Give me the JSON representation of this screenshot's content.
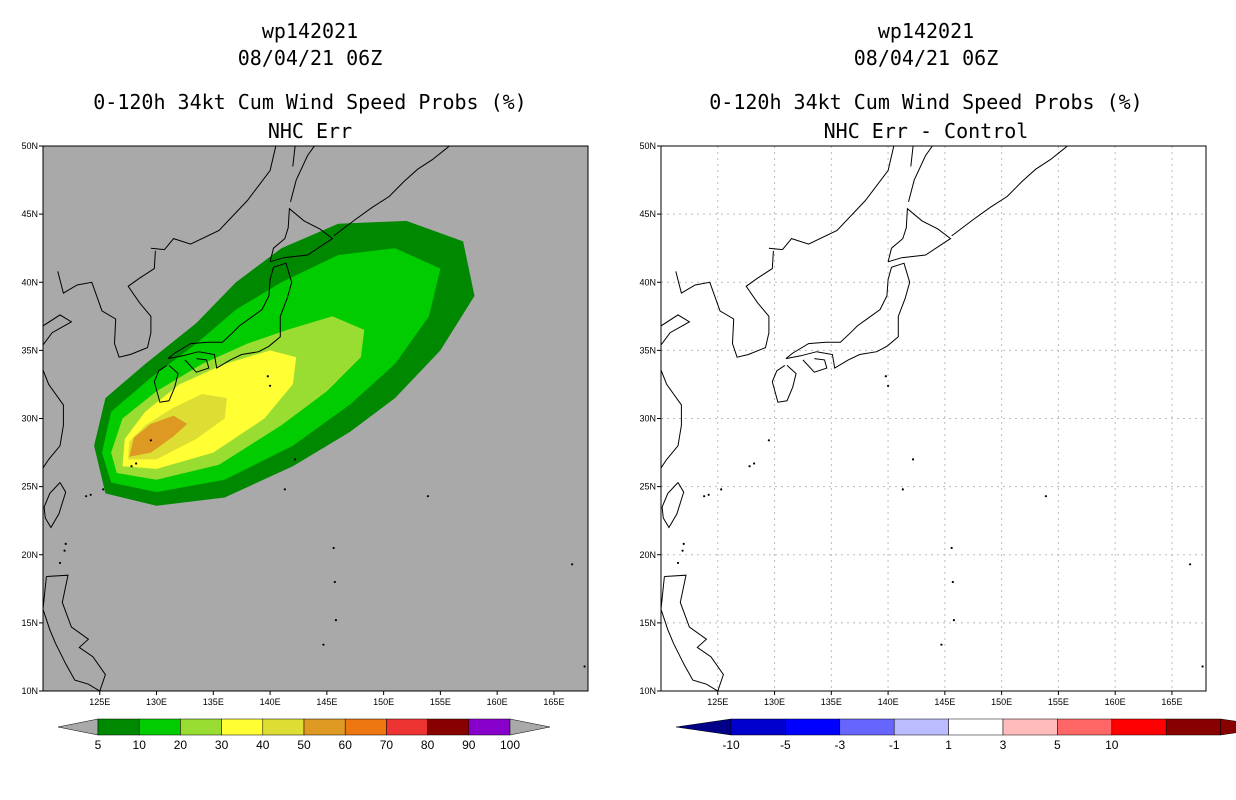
{
  "left_panel": {
    "title_line1": "wp142021",
    "title_line2": "08/04/21 06Z",
    "title_line3": "0-120h 34kt Cum Wind Speed Probs (%)",
    "title_line4": "NHC Err",
    "background_color": "#a9a9a9",
    "colorbar": {
      "labels": [
        "5",
        "10",
        "20",
        "30",
        "40",
        "50",
        "60",
        "70",
        "80",
        "90",
        "100"
      ],
      "colors": [
        "#008800",
        "#00cc00",
        "#99dd33",
        "#ffff33",
        "#dddd33",
        "#dd9922",
        "#ee7711",
        "#ee3333",
        "#880000",
        "#8800cc"
      ],
      "extend_color": "#a9a9a9"
    }
  },
  "right_panel": {
    "title_line1": "wp142021",
    "title_line2": "08/04/21 06Z",
    "title_line3": "0-120h 34kt Cum Wind Speed Probs (%)",
    "title_line4": "NHC Err - Control",
    "background_color": "#ffffff",
    "colorbar": {
      "labels": [
        "-10",
        "-5",
        "-3",
        "-1",
        "1",
        "3",
        "5",
        "10"
      ],
      "colors": [
        "#0000cc",
        "#0000ff",
        "#6666ff",
        "#bbbbff",
        "#ffffff",
        "#ffbbbb",
        "#ff6666",
        "#ff0000",
        "#880000"
      ],
      "low_color": "#000088",
      "high_color": "#880000"
    }
  },
  "axes": {
    "lon_ticks": [
      "125E",
      "130E",
      "135E",
      "140E",
      "145E",
      "150E",
      "155E",
      "160E",
      "165E"
    ],
    "lat_ticks": [
      "10N",
      "15N",
      "20N",
      "25N",
      "30N",
      "35N",
      "40N",
      "45N",
      "50N"
    ],
    "lon_range": [
      120,
      168
    ],
    "lat_range": [
      10,
      50
    ]
  },
  "probability_contours": [
    {
      "level": 5,
      "color": "#008800",
      "points": [
        [
          125.5,
          24.5
        ],
        [
          130,
          23.6
        ],
        [
          136,
          24.2
        ],
        [
          142,
          26.5
        ],
        [
          147,
          29
        ],
        [
          151,
          31.5
        ],
        [
          155,
          35
        ],
        [
          158,
          39
        ],
        [
          157,
          43
        ],
        [
          152,
          44.5
        ],
        [
          146,
          44.3
        ],
        [
          141,
          42.5
        ],
        [
          137,
          40
        ],
        [
          133.5,
          37
        ],
        [
          129,
          34
        ],
        [
          125.5,
          31.5
        ],
        [
          124.5,
          28
        ]
      ]
    },
    {
      "level": 10,
      "color": "#00cc00",
      "points": [
        [
          126,
          25.3
        ],
        [
          130,
          24.6
        ],
        [
          136,
          25.5
        ],
        [
          142,
          28
        ],
        [
          147,
          31
        ],
        [
          151,
          34
        ],
        [
          154,
          37.5
        ],
        [
          155,
          41
        ],
        [
          151,
          42.5
        ],
        [
          146,
          42
        ],
        [
          141,
          40
        ],
        [
          137,
          38
        ],
        [
          133.5,
          35.5
        ],
        [
          129.5,
          33
        ],
        [
          126,
          30.5
        ],
        [
          125.2,
          27.5
        ]
      ]
    },
    {
      "level": 20,
      "color": "#99dd33",
      "points": [
        [
          126.5,
          26
        ],
        [
          130,
          25.5
        ],
        [
          135.5,
          26.6
        ],
        [
          141,
          29.5
        ],
        [
          145,
          32
        ],
        [
          148,
          34.5
        ],
        [
          148.3,
          36.5
        ],
        [
          145.5,
          37.5
        ],
        [
          141.5,
          36.5
        ],
        [
          138,
          35.5
        ],
        [
          134,
          34
        ],
        [
          130,
          32
        ],
        [
          127,
          30
        ],
        [
          126,
          27.5
        ]
      ]
    },
    {
      "level": 30,
      "color": "#ffff33",
      "points": [
        [
          127,
          26.5
        ],
        [
          130,
          26.3
        ],
        [
          135,
          27.5
        ],
        [
          139.5,
          30
        ],
        [
          142,
          32.5
        ],
        [
          142.3,
          34.5
        ],
        [
          140,
          35
        ],
        [
          136,
          34
        ],
        [
          132,
          32.5
        ],
        [
          129,
          30.5
        ],
        [
          127.2,
          28.5
        ]
      ]
    },
    {
      "level": 40,
      "color": "#dddd33",
      "points": [
        [
          127.5,
          27
        ],
        [
          130,
          27
        ],
        [
          133.5,
          28.5
        ],
        [
          136,
          30
        ],
        [
          136.2,
          31.5
        ],
        [
          134,
          31.8
        ],
        [
          131.5,
          30.8
        ],
        [
          129,
          29.5
        ],
        [
          127.6,
          28.3
        ]
      ]
    },
    {
      "level": 50,
      "color": "#dd9922",
      "points": [
        [
          127.6,
          27.2
        ],
        [
          129.5,
          27.5
        ],
        [
          131.5,
          28.7
        ],
        [
          132.7,
          29.6
        ],
        [
          131.5,
          30.2
        ],
        [
          129.5,
          29.6
        ],
        [
          128,
          28.6
        ]
      ]
    }
  ]
}
